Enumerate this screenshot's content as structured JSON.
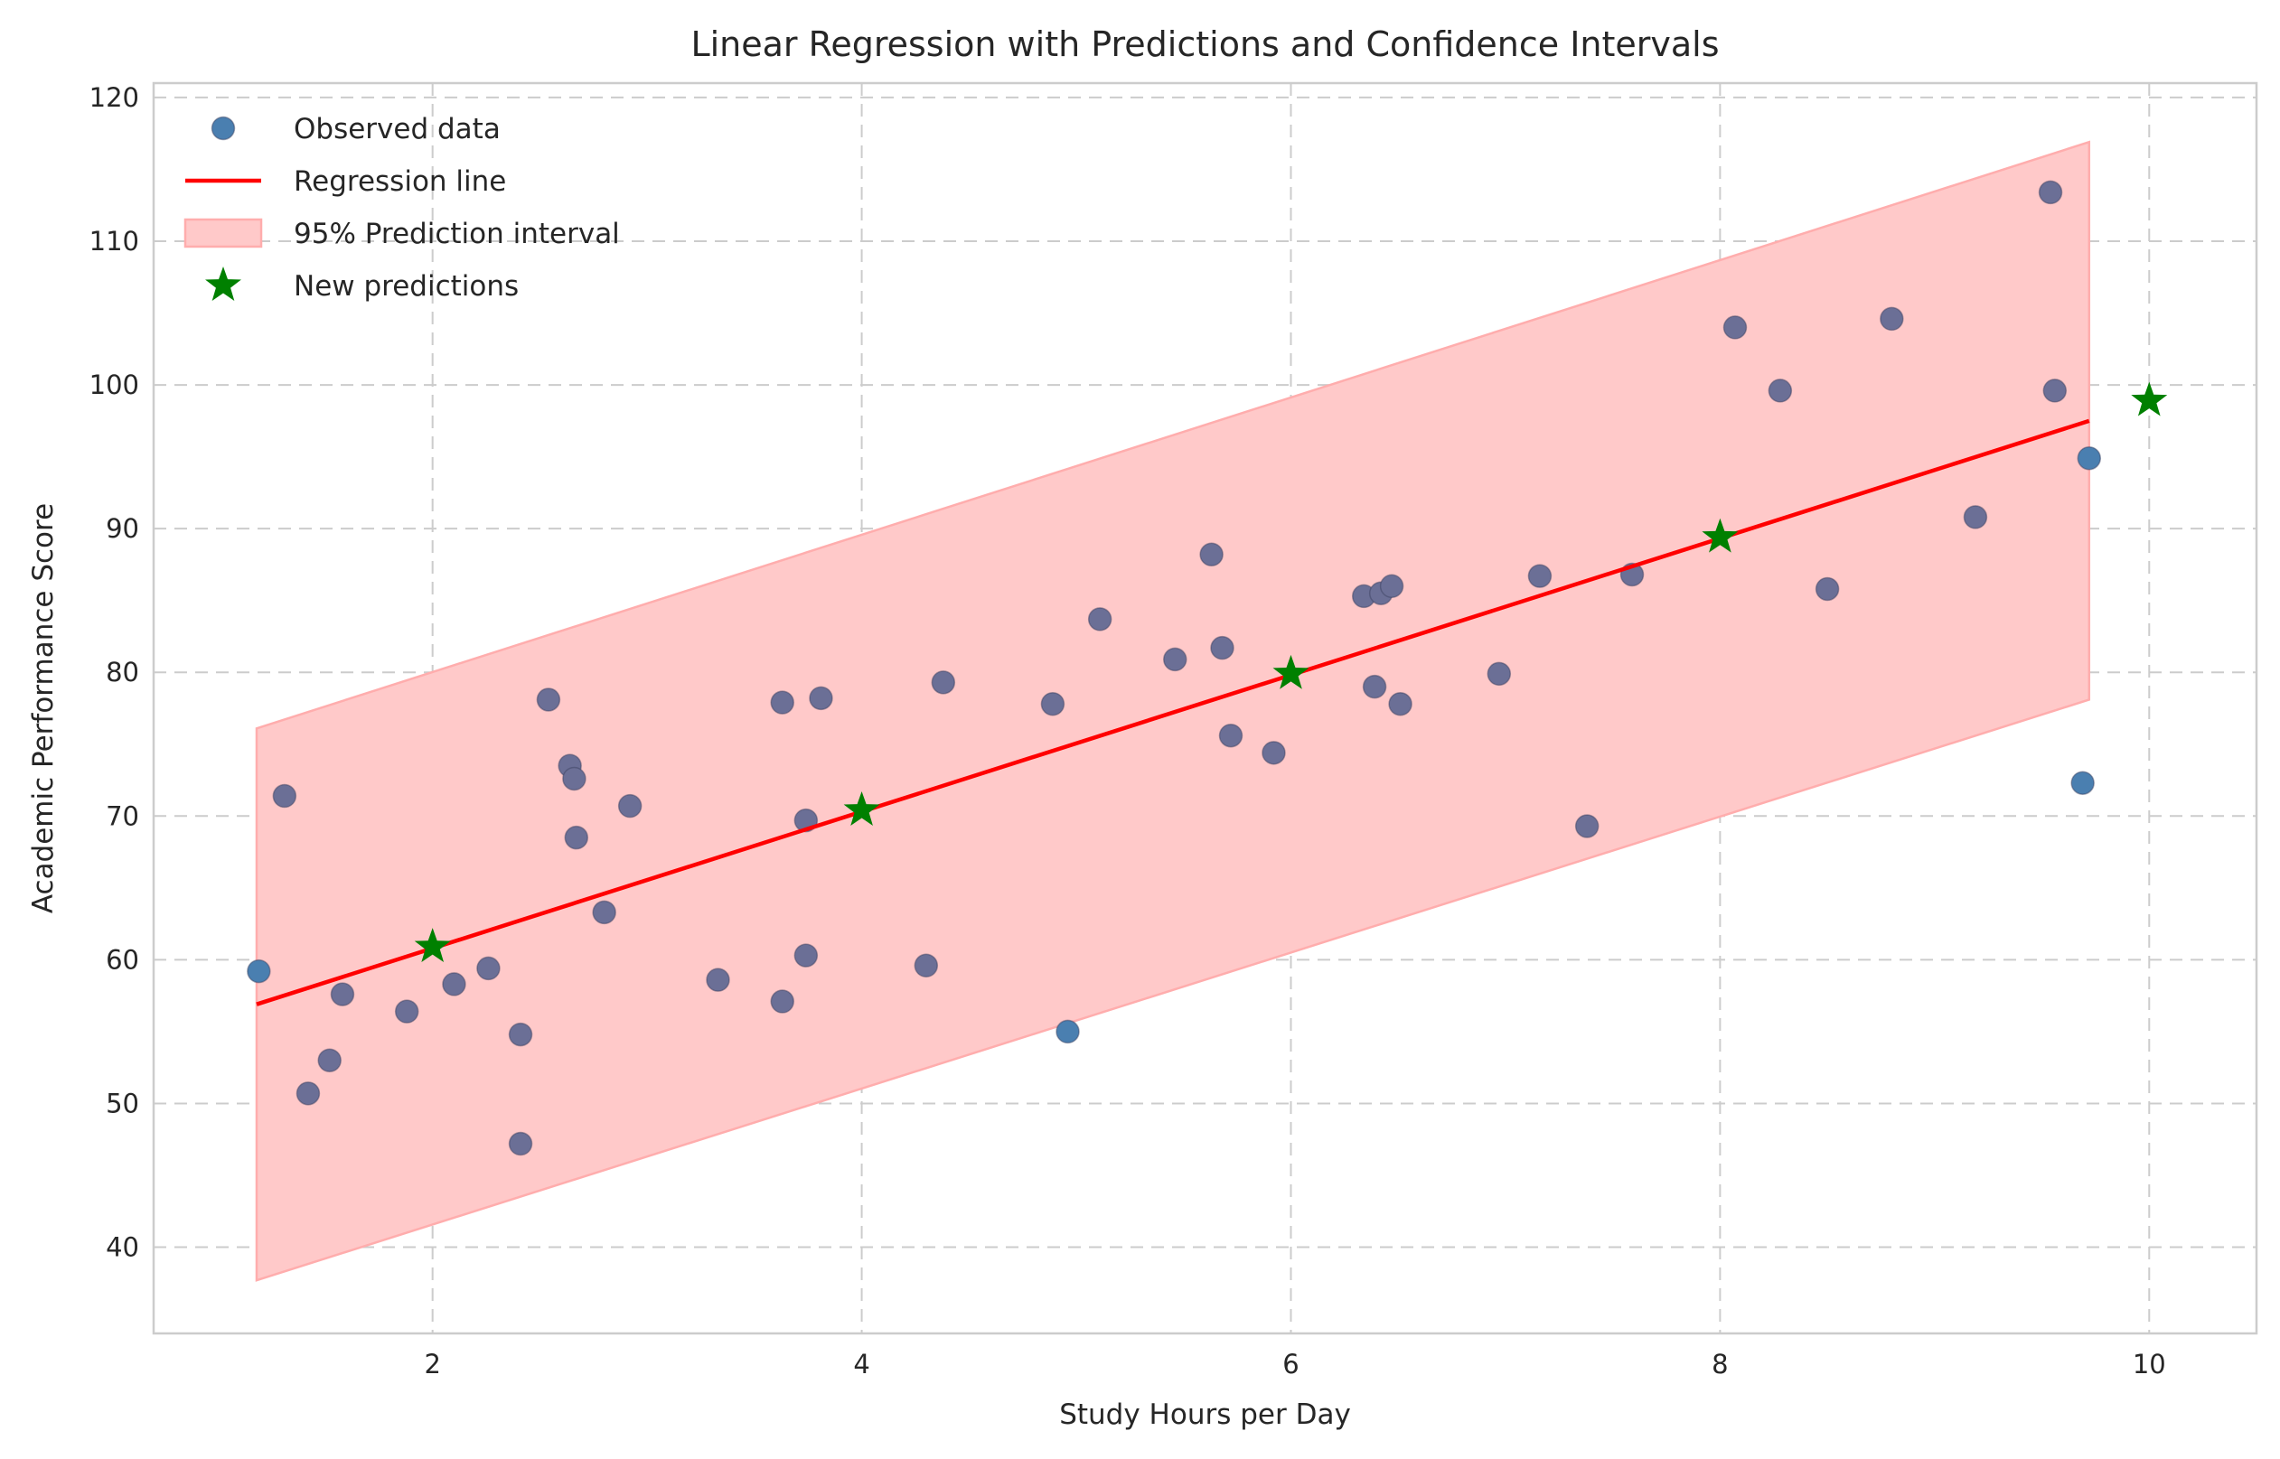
{
  "chart_data": {
    "type": "scatter",
    "title": "Linear Regression with Predictions and Confidence Intervals",
    "xlabel": "Study Hours per Day",
    "ylabel": "Academic Performance Score",
    "xlim": [
      0.7,
      10.5
    ],
    "ylim": [
      34,
      121
    ],
    "xticks": [
      2,
      4,
      6,
      8,
      10
    ],
    "yticks": [
      40,
      50,
      60,
      70,
      80,
      90,
      100,
      110,
      120
    ],
    "grid": true,
    "legend_position": "top-left",
    "colors": {
      "observed": "#4a7fb0",
      "overlap": "#6b6f96",
      "regression": "#ff0000",
      "band": "#ffc9c9",
      "band_edge": "#ffadad",
      "predictions": "#008000"
    },
    "legend": [
      {
        "label": "Observed data",
        "marker": "circle"
      },
      {
        "label": "Regression line",
        "marker": "line"
      },
      {
        "label": "95% Prediction interval",
        "marker": "patch"
      },
      {
        "label": "New predictions",
        "marker": "star"
      }
    ],
    "regression_line": {
      "x": [
        1.18,
        9.72
      ],
      "y": [
        56.9,
        97.5
      ]
    },
    "prediction_interval": {
      "x": [
        1.18,
        9.72
      ],
      "lower": [
        37.7,
        78.1
      ],
      "upper": [
        76.1,
        116.9
      ]
    },
    "new_predictions": {
      "x": [
        2,
        4,
        6,
        8,
        10
      ],
      "y": [
        60.9,
        70.4,
        79.9,
        89.4,
        98.9
      ]
    },
    "observed": {
      "x": [
        1.19,
        1.31,
        1.42,
        1.52,
        1.58,
        1.88,
        2.1,
        2.26,
        2.41,
        2.41,
        2.54,
        2.64,
        2.66,
        2.67,
        2.8,
        2.92,
        3.33,
        3.63,
        3.63,
        3.74,
        3.74,
        3.81,
        4.3,
        4.38,
        4.89,
        4.96,
        5.11,
        5.46,
        5.63,
        5.68,
        5.72,
        5.92,
        6.34,
        6.39,
        6.42,
        6.47,
        6.51,
        6.97,
        7.16,
        7.38,
        7.59,
        8.07,
        8.28,
        8.5,
        8.8,
        9.19,
        9.54,
        9.56,
        9.69,
        9.72
      ],
      "y": [
        59.2,
        71.4,
        50.7,
        53.0,
        57.6,
        56.4,
        58.3,
        59.4,
        54.8,
        47.2,
        78.1,
        73.5,
        72.6,
        68.5,
        63.3,
        70.7,
        58.6,
        57.1,
        77.9,
        69.7,
        60.3,
        78.2,
        59.6,
        79.3,
        77.8,
        55.0,
        83.7,
        80.9,
        88.2,
        81.7,
        75.6,
        74.4,
        85.3,
        79.0,
        85.5,
        86.0,
        77.8,
        79.9,
        86.7,
        69.3,
        86.8,
        104.0,
        99.6,
        85.8,
        104.6,
        90.8,
        113.4,
        99.6,
        72.3,
        94.9
      ],
      "in_band": [
        false,
        true,
        true,
        true,
        true,
        true,
        true,
        true,
        true,
        true,
        true,
        true,
        true,
        true,
        true,
        true,
        true,
        true,
        true,
        true,
        true,
        true,
        true,
        true,
        true,
        false,
        true,
        true,
        true,
        true,
        true,
        true,
        true,
        true,
        true,
        true,
        true,
        true,
        true,
        true,
        true,
        true,
        true,
        true,
        true,
        true,
        true,
        true,
        false,
        false
      ]
    }
  }
}
